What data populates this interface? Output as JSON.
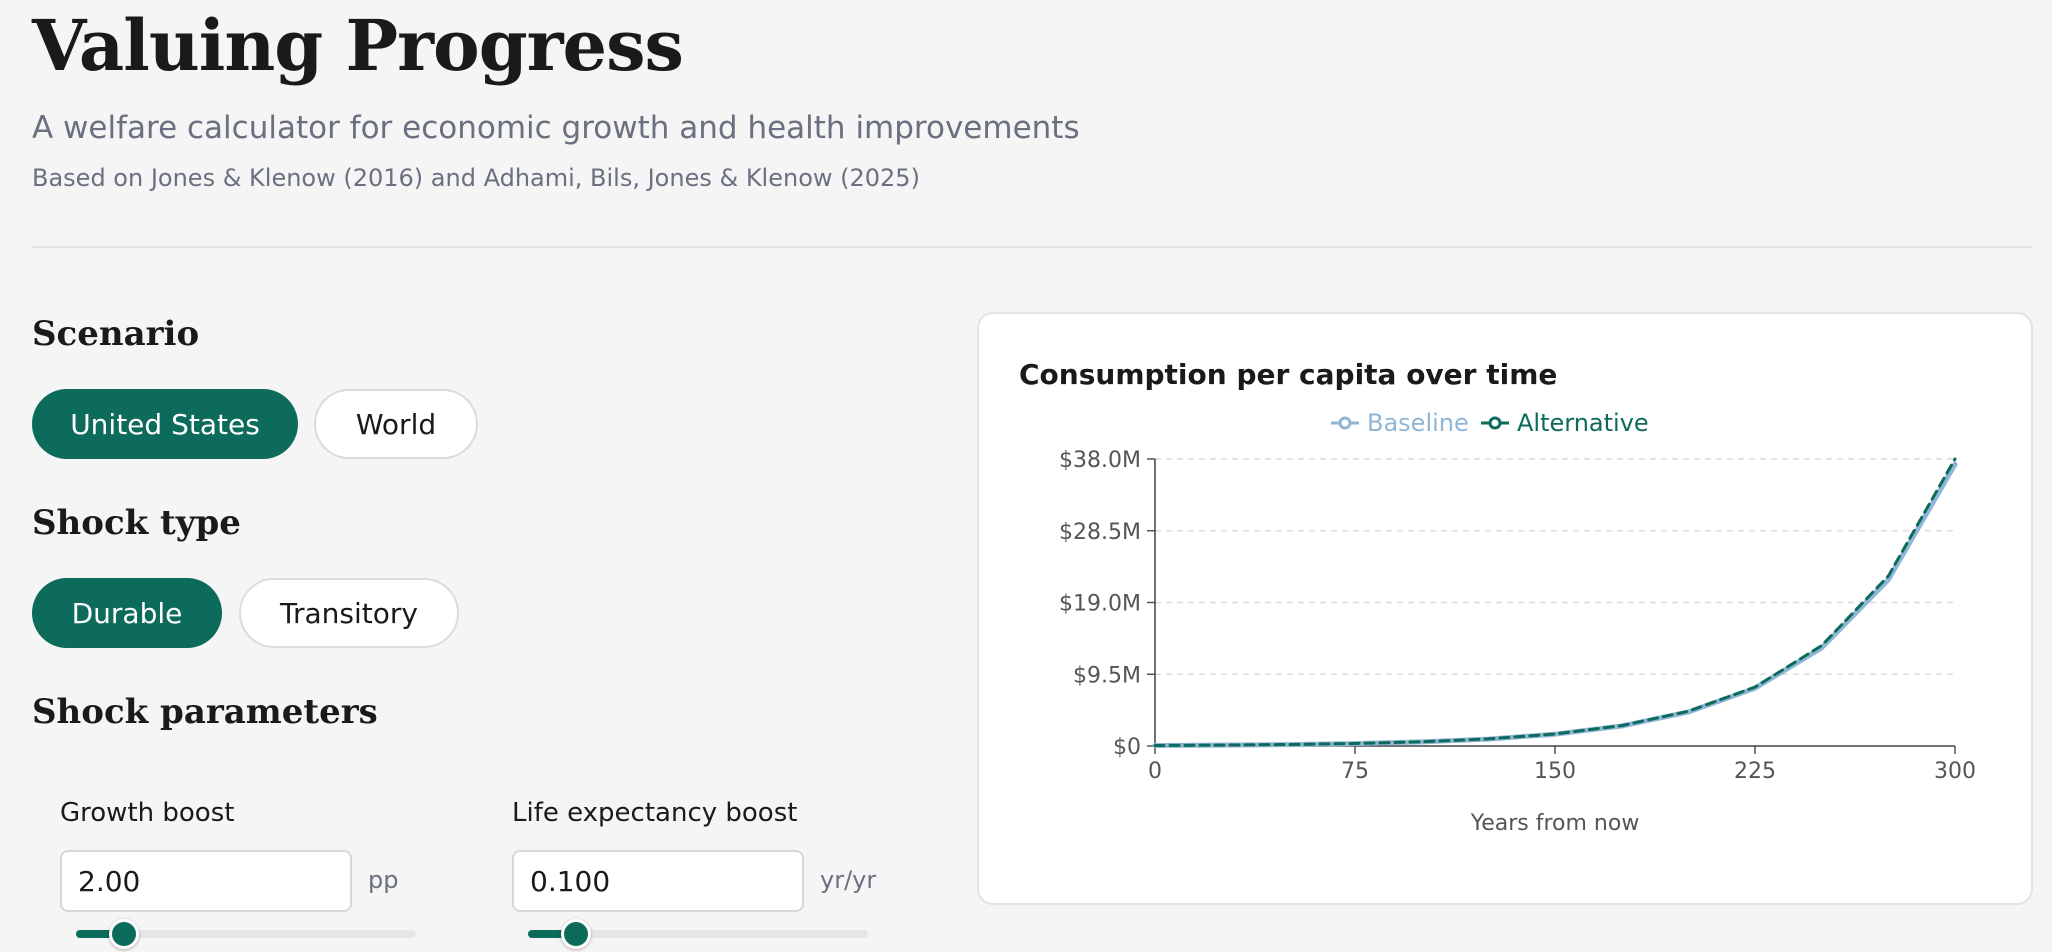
{
  "header": {
    "title": "Valuing Progress",
    "subtitle": "A welfare calculator for economic growth and health improvements",
    "citation": "Based on Jones & Klenow (2016) and Adhami, Bils, Jones & Klenow (2025)"
  },
  "scenario": {
    "heading": "Scenario",
    "options": [
      "United States",
      "World"
    ],
    "selected": "United States"
  },
  "shock_type": {
    "heading": "Shock type",
    "options": [
      "Durable",
      "Transitory"
    ],
    "selected": "Durable"
  },
  "shock_parameters": {
    "heading": "Shock parameters",
    "growth_boost": {
      "label": "Growth boost",
      "value": "2.00",
      "unit": "pp",
      "slider_fraction": 0.14
    },
    "life_expectancy_boost": {
      "label": "Life expectancy boost",
      "value": "0.100",
      "unit": "yr/yr",
      "slider_fraction": 0.14
    }
  },
  "colors": {
    "accent": "#0c6b5b",
    "baseline": "#8fb6d6",
    "alternative": "#0c6b5b"
  },
  "chart_data": {
    "type": "line",
    "title": "Consumption per capita over time",
    "xlabel": "Years from now",
    "ylabel": "",
    "xlim": [
      0,
      300
    ],
    "ylim": [
      0,
      38000000
    ],
    "x_ticks": [
      0,
      75,
      150,
      225,
      300
    ],
    "x_tick_labels": [
      "0",
      "75",
      "150",
      "225",
      "300"
    ],
    "y_ticks": [
      0,
      9500000,
      19000000,
      28500000,
      38000000
    ],
    "y_tick_labels": [
      "$0",
      "$9.5M",
      "$19.0M",
      "$28.5M",
      "$38.0M"
    ],
    "grid": true,
    "legend_position": "top-center",
    "x": [
      0,
      25,
      50,
      75,
      100,
      125,
      150,
      175,
      200,
      225,
      250,
      275,
      300
    ],
    "series": [
      {
        "name": "Baseline",
        "values": [
          70000,
          115000,
          190000,
          320000,
          540000,
          920000,
          1560000,
          2650000,
          4500000,
          7650000,
          13000000,
          22000000,
          37300000
        ]
      },
      {
        "name": "Alternative",
        "values": [
          70000,
          116000,
          193000,
          325000,
          550000,
          935000,
          1590000,
          2700000,
          4600000,
          7800000,
          13300000,
          22500000,
          38000000
        ]
      }
    ]
  }
}
